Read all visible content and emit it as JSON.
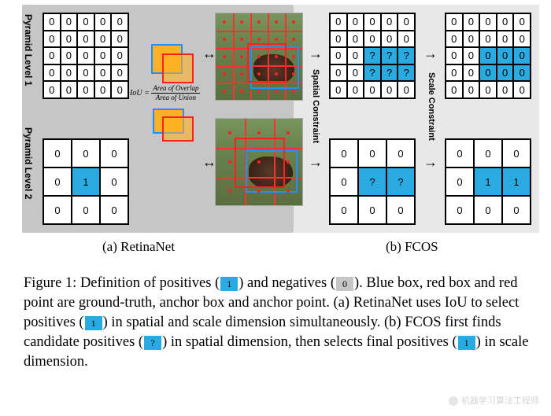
{
  "colors": {
    "panel_left_bg": "#c6c6c6",
    "panel_right_bg": "#e8e8e8",
    "cell_blue": "#29abe2",
    "cell_white": "#ffffff",
    "cell_gray": "#c6c6c6",
    "anchor_red": "#ff2020",
    "fill_orange": "#ffb020",
    "gt_blue": "#2090ff"
  },
  "sizes": {
    "figure_width": 700,
    "figure_height": 330,
    "caption_fontsize": 18.5
  },
  "vlabels": {
    "p1": "Pyramid Level 1",
    "p2": "Pyramid Level 2",
    "spatial": "Spatial Constraint",
    "scale": "Scale Constraint"
  },
  "grids": {
    "a1": {
      "rows": 5,
      "cols": 5,
      "cells": [
        {
          "v": "0",
          "c": "w"
        },
        {
          "v": "0",
          "c": "w"
        },
        {
          "v": "0",
          "c": "w"
        },
        {
          "v": "0",
          "c": "w"
        },
        {
          "v": "0",
          "c": "w"
        },
        {
          "v": "0",
          "c": "w"
        },
        {
          "v": "0",
          "c": "w"
        },
        {
          "v": "0",
          "c": "w"
        },
        {
          "v": "0",
          "c": "w"
        },
        {
          "v": "0",
          "c": "w"
        },
        {
          "v": "0",
          "c": "w"
        },
        {
          "v": "0",
          "c": "w"
        },
        {
          "v": "0",
          "c": "w"
        },
        {
          "v": "0",
          "c": "w"
        },
        {
          "v": "0",
          "c": "w"
        },
        {
          "v": "0",
          "c": "w"
        },
        {
          "v": "0",
          "c": "w"
        },
        {
          "v": "0",
          "c": "w"
        },
        {
          "v": "0",
          "c": "w"
        },
        {
          "v": "0",
          "c": "w"
        },
        {
          "v": "0",
          "c": "w"
        },
        {
          "v": "0",
          "c": "w"
        },
        {
          "v": "0",
          "c": "w"
        },
        {
          "v": "0",
          "c": "w"
        },
        {
          "v": "0",
          "c": "w"
        }
      ]
    },
    "a2": {
      "rows": 3,
      "cols": 3,
      "cells": [
        {
          "v": "0",
          "c": "w"
        },
        {
          "v": "0",
          "c": "w"
        },
        {
          "v": "0",
          "c": "w"
        },
        {
          "v": "0",
          "c": "w"
        },
        {
          "v": "1",
          "c": "b"
        },
        {
          "v": "0",
          "c": "w"
        },
        {
          "v": "0",
          "c": "w"
        },
        {
          "v": "0",
          "c": "w"
        },
        {
          "v": "0",
          "c": "w"
        }
      ]
    },
    "b1a": {
      "rows": 5,
      "cols": 5,
      "cells": [
        {
          "v": "0",
          "c": "w"
        },
        {
          "v": "0",
          "c": "w"
        },
        {
          "v": "0",
          "c": "w"
        },
        {
          "v": "0",
          "c": "w"
        },
        {
          "v": "0",
          "c": "w"
        },
        {
          "v": "0",
          "c": "w"
        },
        {
          "v": "0",
          "c": "w"
        },
        {
          "v": "0",
          "c": "w"
        },
        {
          "v": "0",
          "c": "w"
        },
        {
          "v": "0",
          "c": "w"
        },
        {
          "v": "0",
          "c": "w"
        },
        {
          "v": "0",
          "c": "w"
        },
        {
          "v": "?",
          "c": "b"
        },
        {
          "v": "?",
          "c": "b"
        },
        {
          "v": "?",
          "c": "b"
        },
        {
          "v": "0",
          "c": "w"
        },
        {
          "v": "0",
          "c": "w"
        },
        {
          "v": "?",
          "c": "b"
        },
        {
          "v": "?",
          "c": "b"
        },
        {
          "v": "?",
          "c": "b"
        },
        {
          "v": "0",
          "c": "w"
        },
        {
          "v": "0",
          "c": "w"
        },
        {
          "v": "0",
          "c": "w"
        },
        {
          "v": "0",
          "c": "w"
        },
        {
          "v": "0",
          "c": "w"
        }
      ]
    },
    "b1b": {
      "rows": 5,
      "cols": 5,
      "cells": [
        {
          "v": "0",
          "c": "w"
        },
        {
          "v": "0",
          "c": "w"
        },
        {
          "v": "0",
          "c": "w"
        },
        {
          "v": "0",
          "c": "w"
        },
        {
          "v": "0",
          "c": "w"
        },
        {
          "v": "0",
          "c": "w"
        },
        {
          "v": "0",
          "c": "w"
        },
        {
          "v": "0",
          "c": "w"
        },
        {
          "v": "0",
          "c": "w"
        },
        {
          "v": "0",
          "c": "w"
        },
        {
          "v": "0",
          "c": "w"
        },
        {
          "v": "0",
          "c": "w"
        },
        {
          "v": "0",
          "c": "b"
        },
        {
          "v": "0",
          "c": "b"
        },
        {
          "v": "0",
          "c": "b"
        },
        {
          "v": "0",
          "c": "w"
        },
        {
          "v": "0",
          "c": "w"
        },
        {
          "v": "0",
          "c": "b"
        },
        {
          "v": "0",
          "c": "b"
        },
        {
          "v": "0",
          "c": "b"
        },
        {
          "v": "0",
          "c": "w"
        },
        {
          "v": "0",
          "c": "w"
        },
        {
          "v": "0",
          "c": "w"
        },
        {
          "v": "0",
          "c": "w"
        },
        {
          "v": "0",
          "c": "w"
        }
      ]
    },
    "b2a": {
      "rows": 3,
      "cols": 3,
      "cells": [
        {
          "v": "0",
          "c": "w"
        },
        {
          "v": "0",
          "c": "w"
        },
        {
          "v": "0",
          "c": "w"
        },
        {
          "v": "0",
          "c": "w"
        },
        {
          "v": "?",
          "c": "b"
        },
        {
          "v": "?",
          "c": "b"
        },
        {
          "v": "0",
          "c": "w"
        },
        {
          "v": "0",
          "c": "w"
        },
        {
          "v": "0",
          "c": "w"
        }
      ]
    },
    "b2b": {
      "rows": 3,
      "cols": 3,
      "cells": [
        {
          "v": "0",
          "c": "w"
        },
        {
          "v": "0",
          "c": "w"
        },
        {
          "v": "0",
          "c": "w"
        },
        {
          "v": "0",
          "c": "w"
        },
        {
          "v": "1",
          "c": "b"
        },
        {
          "v": "1",
          "c": "b"
        },
        {
          "v": "0",
          "c": "w"
        },
        {
          "v": "0",
          "c": "w"
        },
        {
          "v": "0",
          "c": "w"
        }
      ]
    }
  },
  "iou": {
    "label": "IoU",
    "eq": "=",
    "num": "Area of Overlap",
    "den": "Area of Union"
  },
  "subcaps": {
    "a": "(a) RetinaNet",
    "b": "(b) FCOS"
  },
  "caption": "Figure 1: Definition of positives (|B1|) and negatives (|G0|). Blue box, red box and red point are ground-truth, anchor box and anchor point. (a) RetinaNet uses IoU to select positives (|B1|) in spatial and scale dimension simultaneously. (b) FCOS first finds candidate positives (|BQ|) in spatial dimension, then selects final positives (|B1|) in scale dimension.",
  "watermark": "机器学习算法工程师"
}
